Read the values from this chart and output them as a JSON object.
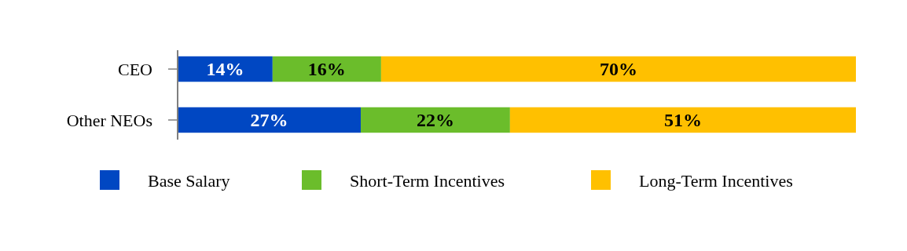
{
  "chart_data": {
    "type": "bar",
    "orientation": "horizontal",
    "stacked": true,
    "data_labels": true,
    "legend": "bottom",
    "categories": [
      "CEO",
      "Other NEOs"
    ],
    "series": [
      {
        "name": "Base Salary",
        "color": "#0047c2",
        "values": [
          14,
          27
        ],
        "value_labels": [
          "14%",
          "27%"
        ]
      },
      {
        "name": "Short-Term Incentives",
        "color": "#6bbd2b",
        "values": [
          16,
          22
        ],
        "value_labels": [
          "16%",
          "22%"
        ]
      },
      {
        "name": "Long-Term Incentives",
        "color": "#ffc000",
        "values": [
          70,
          51
        ],
        "value_labels": [
          "70%",
          "51%"
        ]
      }
    ]
  }
}
